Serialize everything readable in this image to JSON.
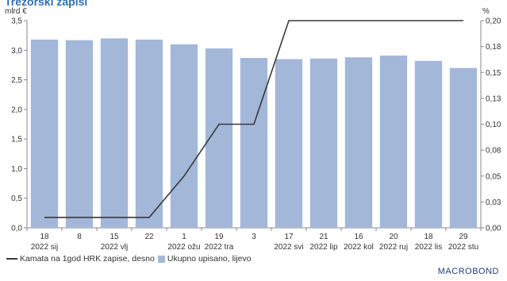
{
  "title": "Trezorski zapisi",
  "brand": "MACROBOND",
  "chart_data": {
    "type": "bar",
    "categories": [
      [
        "18",
        "2022 sij"
      ],
      [
        "8",
        ""
      ],
      [
        "15",
        "2022 vlj"
      ],
      [
        "22",
        ""
      ],
      [
        "1",
        "2022 ožu"
      ],
      [
        "19",
        "2022 tra"
      ],
      [
        "3",
        ""
      ],
      [
        "17",
        "2022 svi"
      ],
      [
        "21",
        "2022 lip"
      ],
      [
        "16",
        "2022 kol"
      ],
      [
        "20",
        "2022 ruj"
      ],
      [
        "18",
        "2022 lis"
      ],
      [
        "29",
        "2022 stu"
      ]
    ],
    "series": [
      {
        "name": "Ukupno upisano, lijevo",
        "type": "bar",
        "axis": "left",
        "color": "#a3b7d9",
        "values": [
          3.18,
          3.17,
          3.2,
          3.18,
          3.1,
          3.03,
          2.87,
          2.85,
          2.86,
          2.88,
          2.91,
          2.82,
          2.7
        ]
      },
      {
        "name": "Kamata na 1god HRK zapise, desno",
        "type": "line",
        "axis": "right",
        "color": "#3a3a3a",
        "values": [
          0.01,
          0.01,
          0.01,
          0.01,
          0.05,
          0.1,
          0.1,
          0.2,
          0.2,
          0.2,
          0.2,
          0.2,
          0.2
        ]
      }
    ],
    "y_left": {
      "unit": "mlrd €",
      "range": [
        0,
        3.5
      ],
      "ticks": [
        "0,0",
        "0,5",
        "1,0",
        "1,5",
        "2,0",
        "2,5",
        "3,0",
        "3,5"
      ]
    },
    "y_right": {
      "unit": "%",
      "range": [
        0,
        0.2
      ],
      "ticks": [
        "0,00",
        "0,03",
        "0,05",
        "0,08",
        "0,10",
        "0,13",
        "0,15",
        "0,18",
        "0,20"
      ]
    },
    "grid": false,
    "legend_position": "bottom-left"
  }
}
